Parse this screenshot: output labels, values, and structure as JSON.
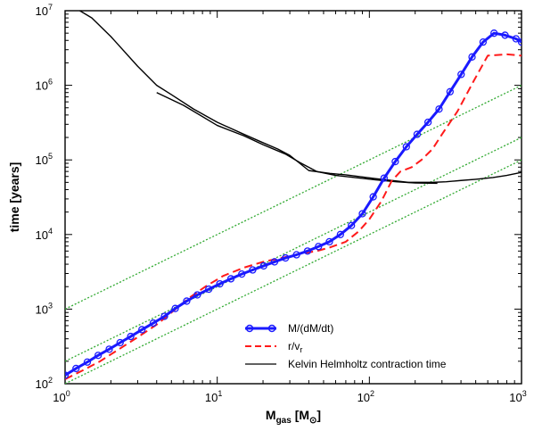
{
  "chart_data": {
    "type": "line",
    "xscale": "log",
    "yscale": "log",
    "xlim": [
      1,
      1000
    ],
    "ylim": [
      100,
      10000000
    ],
    "xlabel": {
      "main": "M",
      "sub": "gas",
      "rest": " [M",
      "sub2": "⊙",
      "end": "]"
    },
    "ylabel": "time  [years]",
    "x_tick_labels": [
      {
        "value": 1,
        "base": "10",
        "exp": "0"
      },
      {
        "value": 10,
        "base": "10",
        "exp": "1"
      },
      {
        "value": 100,
        "base": "10",
        "exp": "2"
      },
      {
        "value": 1000,
        "base": "10",
        "exp": "3"
      }
    ],
    "y_tick_labels": [
      {
        "value": 100,
        "base": "10",
        "exp": "2"
      },
      {
        "value": 1000,
        "base": "10",
        "exp": "3"
      },
      {
        "value": 10000,
        "base": "10",
        "exp": "4"
      },
      {
        "value": 100000,
        "base": "10",
        "exp": "5"
      },
      {
        "value": 1000000,
        "base": "10",
        "exp": "6"
      },
      {
        "value": 10000000,
        "base": "10",
        "exp": "7"
      }
    ],
    "legend_position": "bottom-right",
    "series": [
      {
        "name": "M/(dM/dt)",
        "color": "#1a1aff",
        "style": "solid-thick-circles",
        "x": [
          1.0,
          1.18,
          1.4,
          1.65,
          1.95,
          2.3,
          2.7,
          3.2,
          3.8,
          4.5,
          5.3,
          6.3,
          7.4,
          8.8,
          10.4,
          12.3,
          14.5,
          17.1,
          20.2,
          23.8,
          28.1,
          33.2,
          39.2,
          46.3,
          54.6,
          64.5,
          76.2,
          90,
          106,
          125,
          148,
          175,
          206,
          243,
          287,
          339,
          401,
          473,
          559,
          660,
          779,
          920,
          1000
        ],
        "y": [
          130,
          160,
          195,
          240,
          290,
          355,
          430,
          530,
          650,
          800,
          1020,
          1280,
          1550,
          1850,
          2180,
          2550,
          2950,
          3350,
          3800,
          4300,
          4850,
          5350,
          6000,
          6900,
          8000,
          10000,
          13200,
          19000,
          32000,
          57000,
          95000,
          150000,
          220000,
          320000,
          480000,
          820000,
          1400000,
          2400000,
          3800000,
          5000000,
          4700000,
          4200000,
          3800000
        ]
      },
      {
        "name": "r/v",
        "name_sub": "r",
        "color": "#ff1a1a",
        "style": "dashed",
        "x": [
          1.0,
          1.3,
          1.7,
          2.2,
          3.0,
          4.0,
          5.0,
          6.5,
          8.5,
          11,
          15,
          20,
          27,
          35,
          45,
          55,
          70,
          85,
          100,
          120,
          140,
          160,
          190,
          220,
          260,
          300,
          380,
          480,
          600,
          800,
          1000
        ],
        "y": [
          115,
          150,
          200,
          280,
          420,
          620,
          900,
          1400,
          2050,
          2800,
          3600,
          4300,
          4900,
          5500,
          6000,
          6700,
          8000,
          11000,
          16000,
          28000,
          52000,
          70000,
          80000,
          100000,
          140000,
          220000,
          450000,
          1100000,
          2500000,
          2600000,
          2500000
        ]
      },
      {
        "name": "Kelvin Helmholtz contraction time",
        "color": "#000000",
        "style": "solid-thin",
        "x": [
          1.25,
          1.5,
          2.0,
          3.0,
          4.0,
          5.0,
          7.0,
          10,
          15,
          20,
          25,
          30,
          40,
          55,
          70,
          90,
          110,
          140,
          180,
          220,
          260,
          320,
          400,
          500,
          650,
          800,
          1000
        ],
        "y": [
          10000000,
          8000000,
          4500000,
          1800000,
          1000000,
          750000,
          480000,
          320000,
          220000,
          170000,
          140000,
          115000,
          72000,
          66000,
          63000,
          59000,
          56000,
          53000,
          50000,
          50000,
          50000,
          51000,
          53000,
          55000,
          58000,
          62000,
          68000
        ]
      },
      {
        "name": "",
        "color": "#000000",
        "style": "solid-thin",
        "x": [
          4.0,
          6.0,
          10,
          15,
          20,
          28,
          35,
          45,
          60,
          80,
          110,
          150,
          200,
          280
        ],
        "y": [
          800000,
          540000,
          290000,
          210000,
          160000,
          120000,
          92000,
          70000,
          62000,
          58000,
          54000,
          51000,
          49000,
          48500
        ]
      }
    ],
    "guides": [
      {
        "color": "#33aa33",
        "style": "dotted",
        "slope": 1,
        "y_at_x1": 1000
      },
      {
        "color": "#33aa33",
        "style": "dotted",
        "slope": 1,
        "y_at_x1": 200
      },
      {
        "color": "#33aa33",
        "style": "dotted",
        "slope": 1,
        "y_at_x1": 100
      }
    ]
  }
}
